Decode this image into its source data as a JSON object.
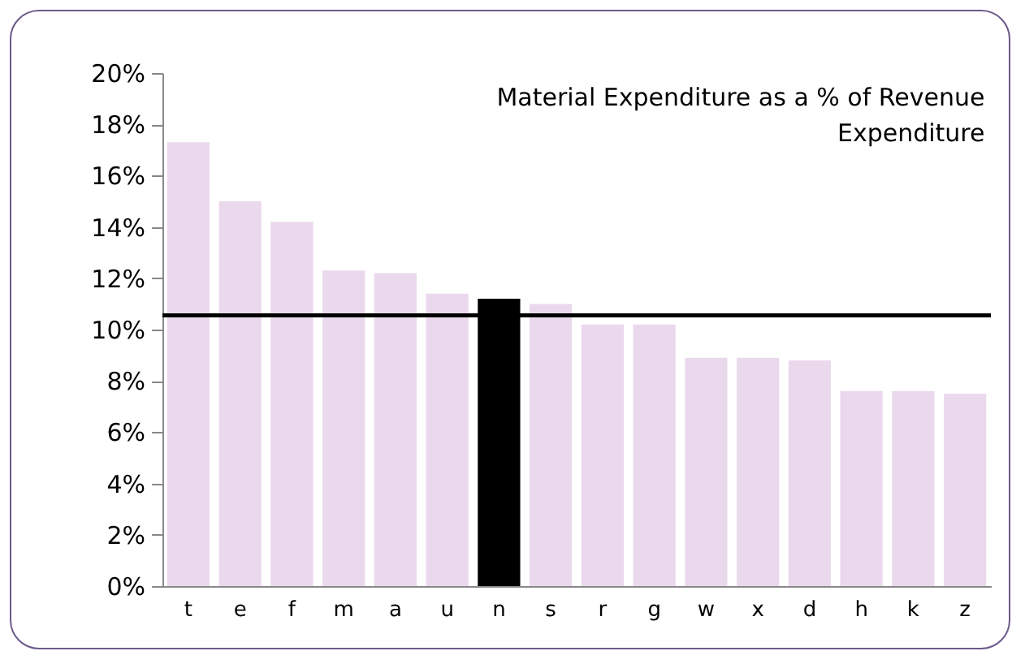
{
  "chart_data": {
    "type": "bar",
    "title": "Material Expenditure as a % of Revenue Expenditure",
    "categories": [
      "t",
      "e",
      "f",
      "m",
      "a",
      "u",
      "n",
      "s",
      "r",
      "g",
      "w",
      "x",
      "d",
      "h",
      "k",
      "z"
    ],
    "values": [
      17.3,
      15.0,
      14.2,
      12.3,
      12.2,
      11.4,
      11.2,
      11.0,
      10.2,
      10.2,
      8.9,
      8.9,
      8.8,
      7.6,
      7.6,
      7.5
    ],
    "colors": [
      "#ead9ec",
      "#ead9ec",
      "#ead9ec",
      "#ead9ec",
      "#ead9ec",
      "#ead9ec",
      "#000000",
      "#ead9ec",
      "#ead9ec",
      "#ead9ec",
      "#ead9ec",
      "#ead9ec",
      "#ead9ec",
      "#ead9ec",
      "#ead9ec",
      "#ead9ec"
    ],
    "ylim": [
      0,
      20
    ],
    "yticks": [
      {
        "value": 0,
        "label": "0%"
      },
      {
        "value": 2,
        "label": "2%"
      },
      {
        "value": 4,
        "label": "4%"
      },
      {
        "value": 6,
        "label": "6%"
      },
      {
        "value": 8,
        "label": "8%"
      },
      {
        "value": 10,
        "label": "10%"
      },
      {
        "value": 12,
        "label": "12%"
      },
      {
        "value": 14,
        "label": "14%"
      },
      {
        "value": 16,
        "label": "16%"
      },
      {
        "value": 18,
        "label": "18%"
      },
      {
        "value": 20,
        "label": "20%"
      }
    ],
    "ref_lines": [
      {
        "axis": "y",
        "value": 10.55,
        "color": "#000000"
      }
    ]
  }
}
